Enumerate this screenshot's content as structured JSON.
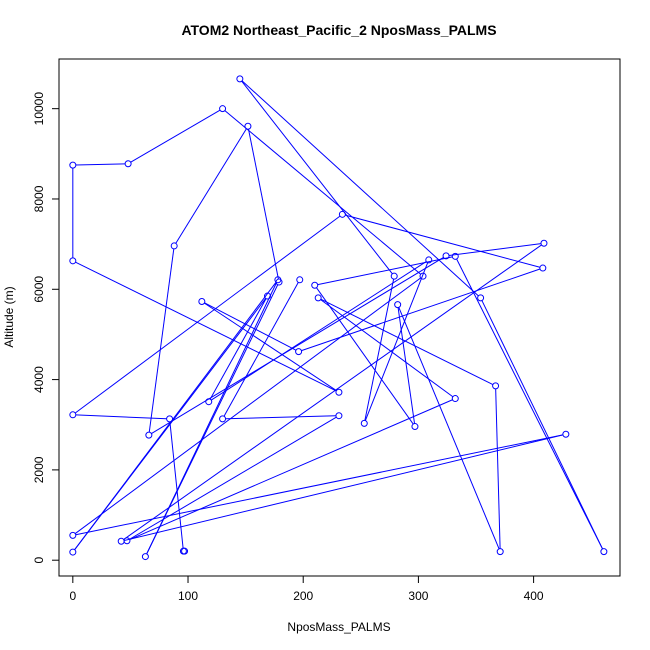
{
  "chart_data": {
    "type": "line",
    "title": "ATOM2 Northeast_Pacific_2 NposMass_PALMS",
    "xlabel": "NposMass_PALMS",
    "ylabel": "Altitude (m)",
    "xlim": [
      -12,
      475
    ],
    "ylim": [
      -350,
      11100
    ],
    "x_ticks": [
      0,
      100,
      200,
      300,
      400
    ],
    "y_ticks": [
      0,
      2000,
      4000,
      6000,
      8000,
      10000
    ],
    "grid": false,
    "legend": "none",
    "series": [
      {
        "line_color": "#0000ff",
        "marker": "open-circle",
        "points": [
          [
            97,
            200
          ],
          [
            96,
            200
          ],
          [
            84,
            3130
          ],
          [
            0,
            3220
          ],
          [
            234,
            7660
          ],
          [
            408,
            6470
          ],
          [
            196,
            4620
          ],
          [
            112,
            5730
          ],
          [
            231,
            3720
          ],
          [
            0,
            6630
          ],
          [
            0,
            8750
          ],
          [
            48,
            8780
          ],
          [
            130,
            10000
          ],
          [
            304,
            6290
          ],
          [
            0,
            550
          ],
          [
            428,
            2790
          ],
          [
            42,
            420
          ],
          [
            409,
            7020
          ],
          [
            324,
            6740
          ],
          [
            66,
            2770
          ],
          [
            88,
            6960
          ],
          [
            152,
            9610
          ],
          [
            179,
            6160
          ],
          [
            63,
            80
          ],
          [
            178,
            6210
          ],
          [
            0,
            180
          ],
          [
            169,
            5850
          ],
          [
            118,
            3510
          ],
          [
            309,
            6650
          ],
          [
            253,
            3030
          ],
          [
            279,
            6290
          ],
          [
            145,
            10660
          ],
          [
            354,
            5810
          ],
          [
            461,
            190
          ],
          [
            332,
            6730
          ],
          [
            210,
            6090
          ],
          [
            297,
            2960
          ],
          [
            282,
            5660
          ],
          [
            371,
            190
          ],
          [
            367,
            3860
          ],
          [
            213,
            5810
          ],
          [
            332,
            3580
          ],
          [
            47,
            430
          ],
          [
            231,
            3200
          ],
          [
            130,
            3130
          ],
          [
            197,
            6210
          ]
        ]
      }
    ]
  }
}
